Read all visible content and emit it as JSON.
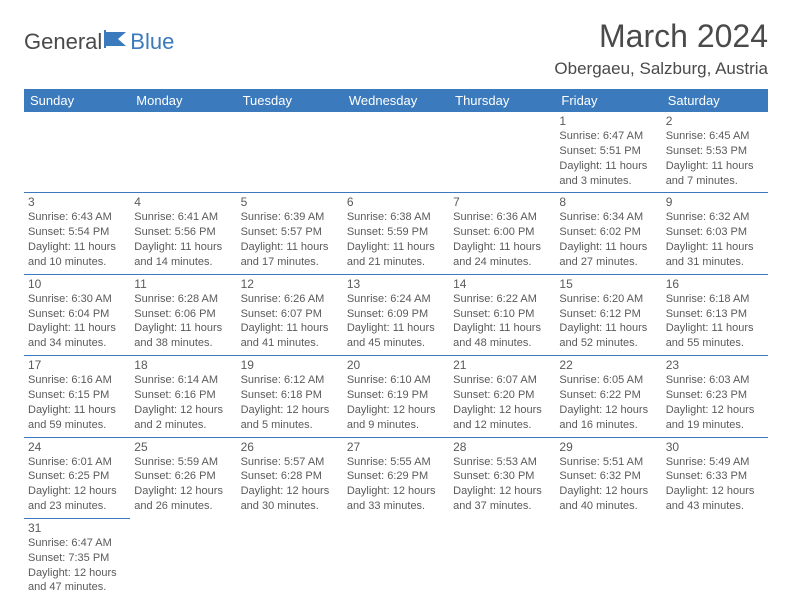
{
  "brand": {
    "part1": "General",
    "part2": "Blue"
  },
  "title": "March 2024",
  "location": "Obergaeu, Salzburg, Austria",
  "colors": {
    "header_bg": "#3a7abd",
    "text": "#4a4a4a",
    "border": "#3a7abd"
  },
  "day_headers": [
    "Sunday",
    "Monday",
    "Tuesday",
    "Wednesday",
    "Thursday",
    "Friday",
    "Saturday"
  ],
  "weeks": [
    [
      null,
      null,
      null,
      null,
      null,
      {
        "n": "1",
        "sr": "6:47 AM",
        "ss": "5:51 PM",
        "dl": "11 hours and 3 minutes."
      },
      {
        "n": "2",
        "sr": "6:45 AM",
        "ss": "5:53 PM",
        "dl": "11 hours and 7 minutes."
      }
    ],
    [
      {
        "n": "3",
        "sr": "6:43 AM",
        "ss": "5:54 PM",
        "dl": "11 hours and 10 minutes."
      },
      {
        "n": "4",
        "sr": "6:41 AM",
        "ss": "5:56 PM",
        "dl": "11 hours and 14 minutes."
      },
      {
        "n": "5",
        "sr": "6:39 AM",
        "ss": "5:57 PM",
        "dl": "11 hours and 17 minutes."
      },
      {
        "n": "6",
        "sr": "6:38 AM",
        "ss": "5:59 PM",
        "dl": "11 hours and 21 minutes."
      },
      {
        "n": "7",
        "sr": "6:36 AM",
        "ss": "6:00 PM",
        "dl": "11 hours and 24 minutes."
      },
      {
        "n": "8",
        "sr": "6:34 AM",
        "ss": "6:02 PM",
        "dl": "11 hours and 27 minutes."
      },
      {
        "n": "9",
        "sr": "6:32 AM",
        "ss": "6:03 PM",
        "dl": "11 hours and 31 minutes."
      }
    ],
    [
      {
        "n": "10",
        "sr": "6:30 AM",
        "ss": "6:04 PM",
        "dl": "11 hours and 34 minutes."
      },
      {
        "n": "11",
        "sr": "6:28 AM",
        "ss": "6:06 PM",
        "dl": "11 hours and 38 minutes."
      },
      {
        "n": "12",
        "sr": "6:26 AM",
        "ss": "6:07 PM",
        "dl": "11 hours and 41 minutes."
      },
      {
        "n": "13",
        "sr": "6:24 AM",
        "ss": "6:09 PM",
        "dl": "11 hours and 45 minutes."
      },
      {
        "n": "14",
        "sr": "6:22 AM",
        "ss": "6:10 PM",
        "dl": "11 hours and 48 minutes."
      },
      {
        "n": "15",
        "sr": "6:20 AM",
        "ss": "6:12 PM",
        "dl": "11 hours and 52 minutes."
      },
      {
        "n": "16",
        "sr": "6:18 AM",
        "ss": "6:13 PM",
        "dl": "11 hours and 55 minutes."
      }
    ],
    [
      {
        "n": "17",
        "sr": "6:16 AM",
        "ss": "6:15 PM",
        "dl": "11 hours and 59 minutes."
      },
      {
        "n": "18",
        "sr": "6:14 AM",
        "ss": "6:16 PM",
        "dl": "12 hours and 2 minutes."
      },
      {
        "n": "19",
        "sr": "6:12 AM",
        "ss": "6:18 PM",
        "dl": "12 hours and 5 minutes."
      },
      {
        "n": "20",
        "sr": "6:10 AM",
        "ss": "6:19 PM",
        "dl": "12 hours and 9 minutes."
      },
      {
        "n": "21",
        "sr": "6:07 AM",
        "ss": "6:20 PM",
        "dl": "12 hours and 12 minutes."
      },
      {
        "n": "22",
        "sr": "6:05 AM",
        "ss": "6:22 PM",
        "dl": "12 hours and 16 minutes."
      },
      {
        "n": "23",
        "sr": "6:03 AM",
        "ss": "6:23 PM",
        "dl": "12 hours and 19 minutes."
      }
    ],
    [
      {
        "n": "24",
        "sr": "6:01 AM",
        "ss": "6:25 PM",
        "dl": "12 hours and 23 minutes."
      },
      {
        "n": "25",
        "sr": "5:59 AM",
        "ss": "6:26 PM",
        "dl": "12 hours and 26 minutes."
      },
      {
        "n": "26",
        "sr": "5:57 AM",
        "ss": "6:28 PM",
        "dl": "12 hours and 30 minutes."
      },
      {
        "n": "27",
        "sr": "5:55 AM",
        "ss": "6:29 PM",
        "dl": "12 hours and 33 minutes."
      },
      {
        "n": "28",
        "sr": "5:53 AM",
        "ss": "6:30 PM",
        "dl": "12 hours and 37 minutes."
      },
      {
        "n": "29",
        "sr": "5:51 AM",
        "ss": "6:32 PM",
        "dl": "12 hours and 40 minutes."
      },
      {
        "n": "30",
        "sr": "5:49 AM",
        "ss": "6:33 PM",
        "dl": "12 hours and 43 minutes."
      }
    ],
    [
      {
        "n": "31",
        "sr": "6:47 AM",
        "ss": "7:35 PM",
        "dl": "12 hours and 47 minutes."
      },
      null,
      null,
      null,
      null,
      null,
      null
    ]
  ],
  "labels": {
    "sunrise": "Sunrise:",
    "sunset": "Sunset:",
    "daylight": "Daylight:"
  }
}
